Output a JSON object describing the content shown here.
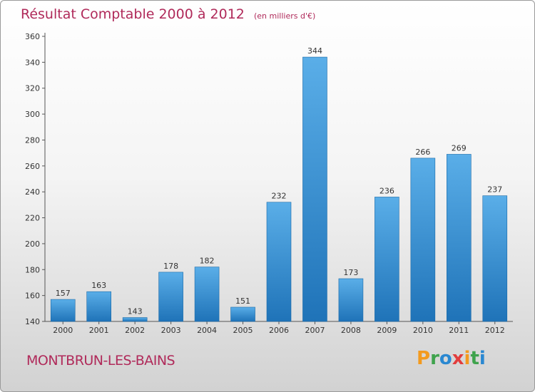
{
  "title": "Résultat Comptable 2000 à 2012",
  "unit_note": "(en milliers d'€)",
  "place": "MONTBRUN-LES-BAINS",
  "brand": "Proxiti",
  "colors": {
    "title": "#b02a5a",
    "bar_light": "#5aaee8",
    "bar_dark": "#1f73b8"
  },
  "chart_data": {
    "type": "bar",
    "title": "Résultat Comptable 2000 à 2012",
    "xlabel": "",
    "ylabel": "(en milliers d'€)",
    "categories": [
      "2000",
      "2001",
      "2002",
      "2003",
      "2004",
      "2005",
      "2006",
      "2007",
      "2008",
      "2009",
      "2010",
      "2011",
      "2012"
    ],
    "values": [
      157,
      163,
      143,
      178,
      182,
      151,
      232,
      344,
      173,
      236,
      266,
      269,
      237
    ],
    "ylim": [
      140,
      360
    ],
    "yticks": [
      140,
      160,
      180,
      200,
      220,
      240,
      260,
      280,
      300,
      320,
      340,
      360
    ],
    "grid": false
  }
}
